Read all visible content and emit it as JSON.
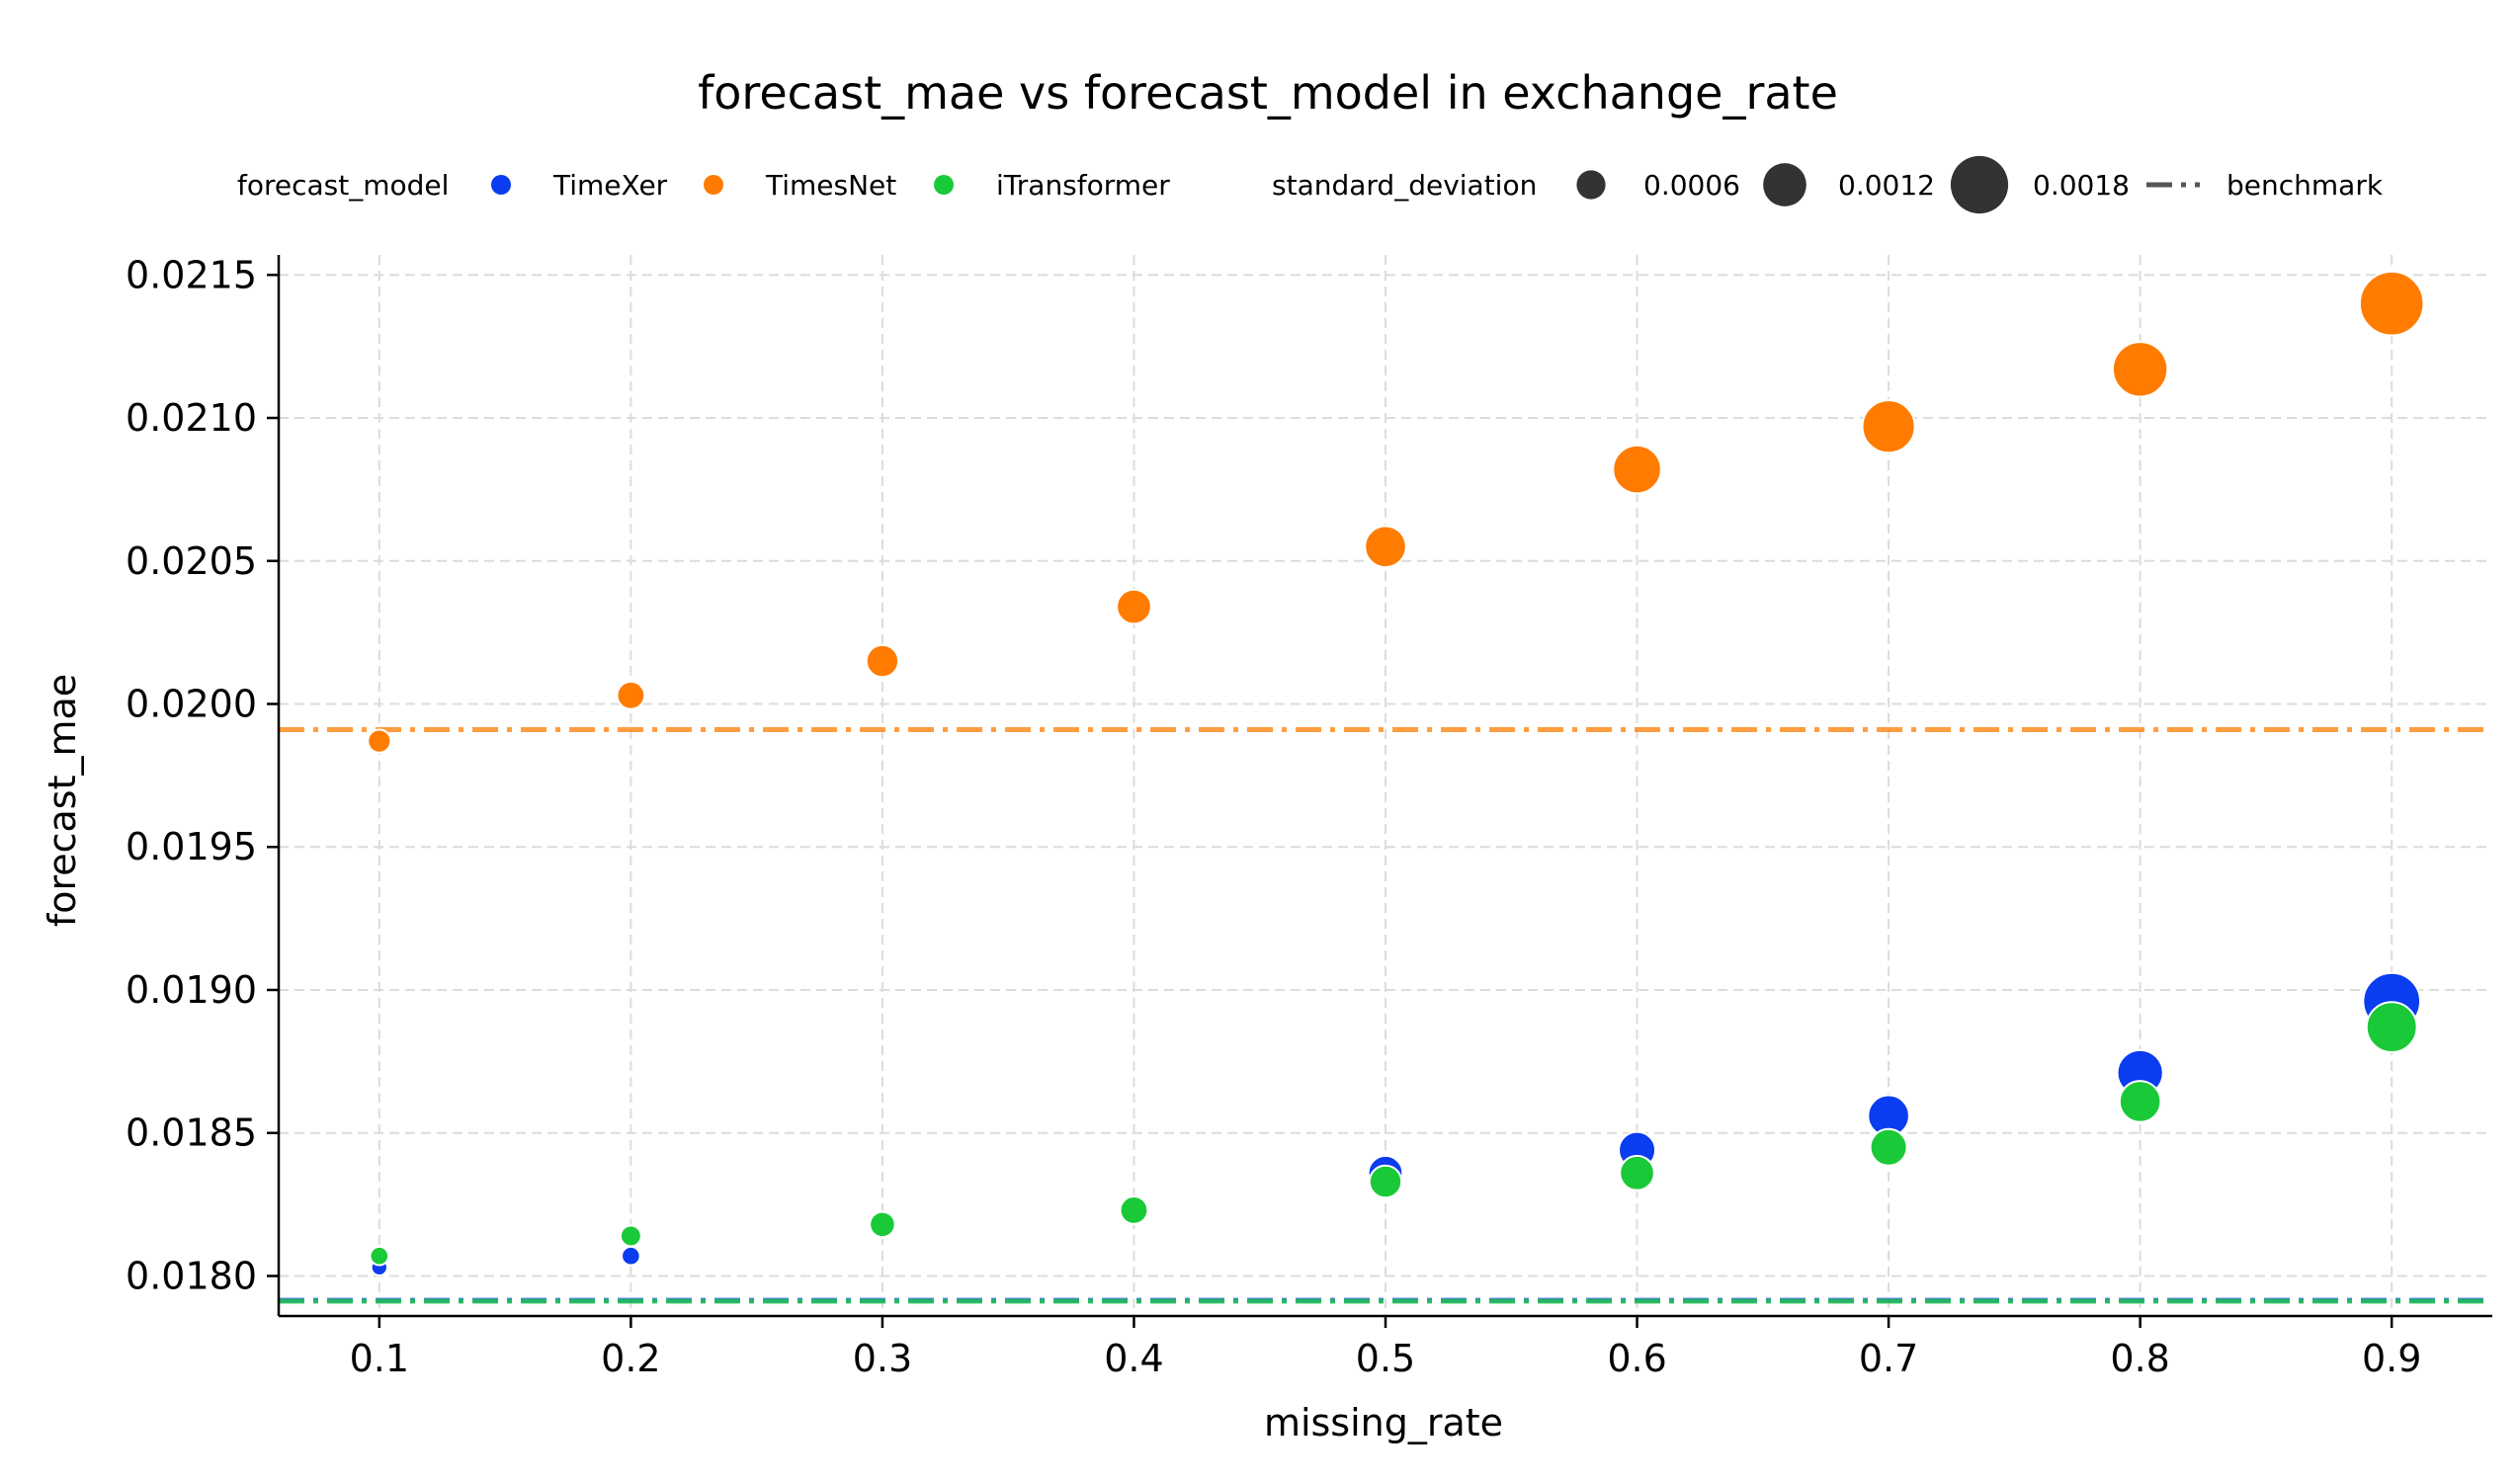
{
  "chart_data": {
    "type": "scatter",
    "title": "forecast_mae vs forecast_model in exchange_rate",
    "xlabel": "missing_rate",
    "ylabel": "forecast_mae",
    "xlim": [
      0.06,
      0.94
    ],
    "ylim": [
      0.01786,
      0.02157
    ],
    "xticks": [
      0.1,
      0.2,
      0.3,
      0.4,
      0.5,
      0.6,
      0.7,
      0.8,
      0.9
    ],
    "yticks": [
      0.018,
      0.0185,
      0.019,
      0.0195,
      0.02,
      0.0205,
      0.021,
      0.0215
    ],
    "xtick_labels": [
      "0.1",
      "0.2",
      "0.3",
      "0.4",
      "0.5",
      "0.6",
      "0.7",
      "0.8",
      "0.9"
    ],
    "ytick_labels": [
      "0.0180",
      "0.0185",
      "0.0190",
      "0.0195",
      "0.0200",
      "0.0205",
      "0.0210",
      "0.0215"
    ],
    "grid": true,
    "legend": {
      "placement": "top, below title",
      "hue_title": "forecast_model",
      "size_title": "standard_deviation",
      "size_entries": [
        {
          "label": "0.0006",
          "value": 0.0006
        },
        {
          "label": "0.0012",
          "value": 0.0012
        },
        {
          "label": "0.0018",
          "value": 0.0018
        }
      ],
      "benchmark_label": "benchmark"
    },
    "series": [
      {
        "name": "TimeXer",
        "color": "#0a3cf0",
        "x": [
          0.1,
          0.2,
          0.3,
          0.5,
          0.6,
          0.7,
          0.8,
          0.9
        ],
        "y": [
          0.01803,
          0.01807,
          0.01817,
          0.01836,
          0.01844,
          0.01856,
          0.01871,
          0.01896
        ],
        "std": [
          0.0001,
          0.0002,
          0.0003,
          0.0009,
          0.001,
          0.0012,
          0.0014,
          0.0019
        ],
        "benchmark": 0.017915
      },
      {
        "name": "TimesNet",
        "color": "#ff7c00",
        "x": [
          0.1,
          0.2,
          0.3,
          0.4,
          0.5,
          0.6,
          0.7,
          0.8,
          0.9
        ],
        "y": [
          0.01987,
          0.02003,
          0.02015,
          0.02034,
          0.02055,
          0.02082,
          0.02097,
          0.02117,
          0.0214
        ],
        "std": [
          0.0004,
          0.0006,
          0.0008,
          0.0009,
          0.0012,
          0.0015,
          0.0017,
          0.0018,
          0.0022
        ],
        "benchmark": 0.01991
      },
      {
        "name": "iTransformer",
        "color": "#1ac938",
        "x": [
          0.1,
          0.2,
          0.3,
          0.4,
          0.5,
          0.6,
          0.7,
          0.8,
          0.9
        ],
        "y": [
          0.01807,
          0.01814,
          0.01818,
          0.01823,
          0.01833,
          0.01836,
          0.01845,
          0.01861,
          0.01887
        ],
        "std": [
          0.0002,
          0.0003,
          0.0005,
          0.0006,
          0.0008,
          0.0009,
          0.001,
          0.0012,
          0.0016
        ],
        "benchmark": 0.017912
      }
    ]
  }
}
